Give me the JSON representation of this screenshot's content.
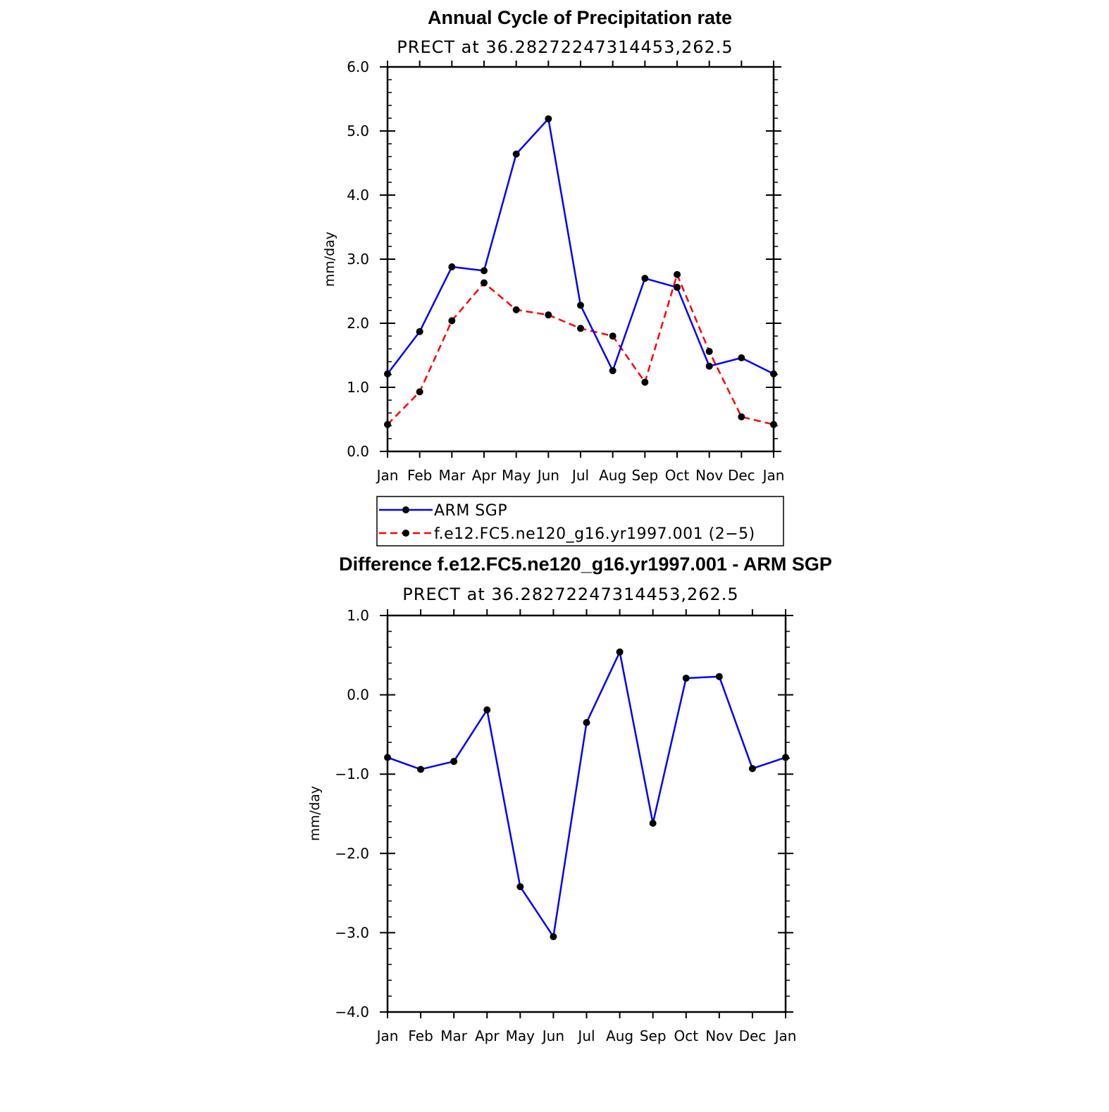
{
  "chart_data": [
    {
      "type": "line",
      "title": "Annual Cycle of Precipitation rate",
      "subtitle": "PRECT at 36.28272247314453,262.5",
      "xlabel": "",
      "ylabel": "mm/day",
      "categories": [
        "Jan",
        "Feb",
        "Mar",
        "Apr",
        "May",
        "Jun",
        "Jul",
        "Aug",
        "Sep",
        "Oct",
        "Nov",
        "Dec",
        "Jan"
      ],
      "ylim": [
        0.0,
        6.0
      ],
      "yticks": [
        "0.0",
        "1.0",
        "2.0",
        "3.0",
        "4.0",
        "5.0",
        "6.0"
      ],
      "series": [
        {
          "name": "ARM SGP",
          "color": "#0000ff",
          "dash": "solid",
          "values": [
            1.21,
            1.87,
            2.88,
            2.82,
            4.64,
            5.19,
            2.28,
            1.26,
            2.7,
            2.56,
            1.33,
            1.46,
            1.21
          ]
        },
        {
          "name": "f.e12.FC5.ne120_g16.yr1997.001 (2−5)",
          "color": "#ff0000",
          "dash": "dashed",
          "values": [
            0.42,
            0.93,
            2.04,
            2.63,
            2.21,
            2.13,
            1.92,
            1.8,
            1.08,
            2.76,
            1.56,
            0.54,
            0.42
          ]
        }
      ],
      "legend": {
        "placement": "bottom",
        "entries": [
          "ARM SGP",
          "f.e12.FC5.ne120_g16.yr1997.001 (2−5)"
        ]
      }
    },
    {
      "type": "line",
      "title": "Difference f.e12.FC5.ne120_g16.yr1997.001 - ARM SGP",
      "subtitle": "PRECT at 36.28272247314453,262.5",
      "xlabel": "",
      "ylabel": "mm/day",
      "categories": [
        "Jan",
        "Feb",
        "Mar",
        "Apr",
        "May",
        "Jun",
        "Jul",
        "Aug",
        "Sep",
        "Oct",
        "Nov",
        "Dec",
        "Jan"
      ],
      "ylim": [
        -4.0,
        1.0
      ],
      "yticks": [
        "−4.0",
        "−3.0",
        "−2.0",
        "−1.0",
        "0.0",
        "1.0"
      ],
      "series": [
        {
          "name": "Difference",
          "color": "#0000ff",
          "dash": "solid",
          "values": [
            -0.79,
            -0.94,
            -0.84,
            -0.19,
            -2.42,
            -3.05,
            -0.35,
            0.54,
            -1.62,
            0.21,
            0.23,
            -0.93,
            -0.79
          ]
        }
      ]
    }
  ]
}
